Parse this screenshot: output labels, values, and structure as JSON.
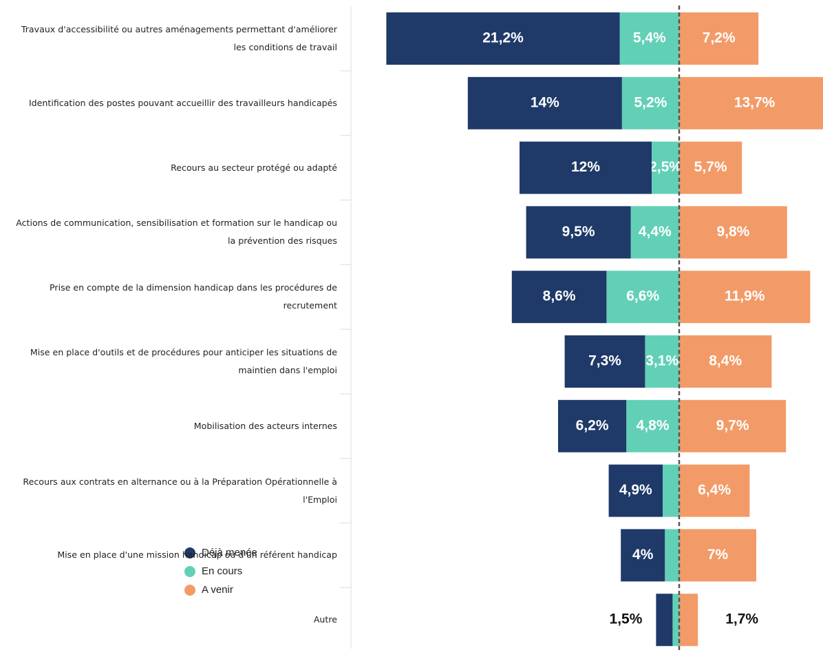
{
  "chart_data": {
    "type": "diverging_bar",
    "categories": [
      "Travaux d'accessibilité ou autres aménagements permettant d'améliorer les conditions de travail",
      "Identification des postes pouvant accueillir des travailleurs handicapés",
      "Recours au secteur protégé ou adapté",
      "Actions de communication, sensibilisation et formation sur le handicap ou la prévention des risques",
      "Prise en compte de la dimension handicap dans les procédures de recrutement",
      "Mise en place d'outils et de procédures pour anticiper les situations de maintien dans l'emploi",
      "Mobilisation des acteurs internes",
      "Recours aux contrats en alternance ou à la Préparation Opérationnelle à l'Emploi",
      "Mise en place d'une mission handicap ou d'un référent handicap",
      "Autre"
    ],
    "series": [
      {
        "name": "Déjà menée",
        "color": "#1f3a68",
        "side": "left",
        "values": [
          21.2,
          14,
          12,
          9.5,
          8.6,
          7.3,
          6.2,
          4.9,
          4,
          1.5
        ],
        "value_labels": [
          "21,2%",
          "14%",
          "12%",
          "9,5%",
          "8,6%",
          "7,3%",
          "6,2%",
          "4,9%",
          "4%",
          "1,5%"
        ]
      },
      {
        "name": "En cours",
        "color": "#62d0b6",
        "side": "left",
        "values": [
          5.4,
          5.2,
          2.5,
          4.4,
          6.6,
          3.1,
          4.8,
          1.5,
          1.3,
          0.6
        ],
        "value_labels": [
          "5,4%",
          "5,2%",
          "2,5%",
          "4,4%",
          "6,6%",
          "3,1%",
          "4,8%",
          null,
          null,
          null
        ]
      },
      {
        "name": "A venir",
        "color": "#f29b68",
        "side": "right",
        "values": [
          7.2,
          13.7,
          5.7,
          9.8,
          11.9,
          8.4,
          9.7,
          6.4,
          7,
          1.7
        ],
        "value_labels": [
          "7,2%",
          "13,7%",
          "5,7%",
          "9,8%",
          "11,9%",
          "8,4%",
          "9,7%",
          "6,4%",
          "7%",
          "1,7%"
        ]
      }
    ],
    "legend": "lower left"
  }
}
